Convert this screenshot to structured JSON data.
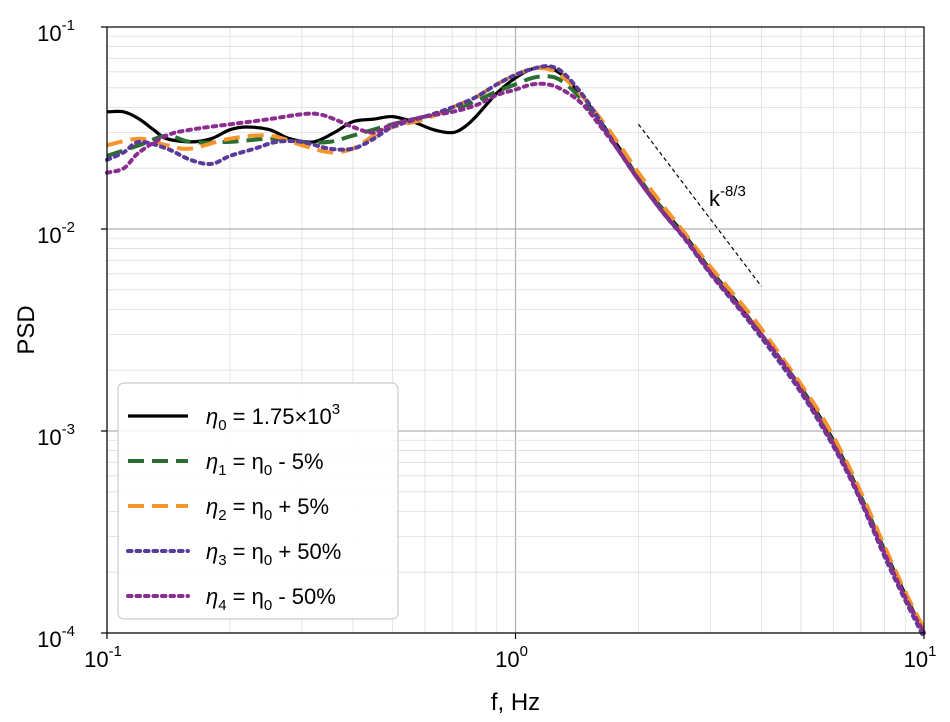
{
  "chart_data": {
    "type": "line",
    "title": "",
    "xlabel": "f, Hz",
    "ylabel": "PSD",
    "xscale": "log",
    "yscale": "log",
    "xlim": [
      0.1,
      10
    ],
    "ylim": [
      0.0001,
      0.1
    ],
    "grid": true,
    "legend_position": "lower-left",
    "x_ticks": [
      {
        "base": "10",
        "exp": "-1"
      },
      {
        "base": "10",
        "exp": "0"
      },
      {
        "base": "10",
        "exp": "1"
      }
    ],
    "y_ticks": [
      {
        "base": "10",
        "exp": "-4"
      },
      {
        "base": "10",
        "exp": "-3"
      },
      {
        "base": "10",
        "exp": "-2"
      },
      {
        "base": "10",
        "exp": "-1"
      }
    ],
    "annotation": {
      "label_base": "k",
      "label_exp": "-8/3",
      "line": {
        "x": [
          2.0,
          4.0
        ],
        "y": [
          0.033,
          0.0052
        ]
      }
    },
    "series": [
      {
        "name": "η0 = 1.75×10^3",
        "legend": {
          "sym": "η",
          "sub": "0",
          "text": " = 1.75×10",
          "sup": "3"
        },
        "color": "#000000",
        "style": "solid",
        "x": [
          0.1,
          0.11,
          0.12,
          0.13,
          0.14,
          0.16,
          0.18,
          0.2,
          0.22,
          0.25,
          0.28,
          0.32,
          0.36,
          0.4,
          0.45,
          0.5,
          0.56,
          0.63,
          0.7,
          0.75,
          0.8,
          0.9,
          1.0,
          1.1,
          1.2,
          1.3,
          1.45,
          1.6,
          1.8,
          2.0,
          2.3,
          2.6,
          3.0,
          3.5,
          4.0,
          4.5,
          5.0,
          5.6,
          6.3,
          7.0,
          8.0,
          9.0,
          10.0
        ],
        "y": [
          0.038,
          0.038,
          0.035,
          0.031,
          0.028,
          0.027,
          0.028,
          0.031,
          0.032,
          0.031,
          0.028,
          0.027,
          0.03,
          0.034,
          0.035,
          0.036,
          0.034,
          0.031,
          0.03,
          0.032,
          0.036,
          0.047,
          0.056,
          0.062,
          0.063,
          0.058,
          0.046,
          0.035,
          0.025,
          0.018,
          0.0125,
          0.0093,
          0.0063,
          0.0043,
          0.003,
          0.0022,
          0.00165,
          0.00115,
          0.00075,
          0.00048,
          0.00026,
          0.000155,
          0.0001
        ]
      },
      {
        "name": "η1 = η0 - 5%",
        "legend": {
          "sym": "η",
          "sub": "1",
          "text": " = η",
          "sub2": "0",
          "text2": " - 5%"
        },
        "color": "#2a6e32",
        "style": "dash",
        "x": [
          0.1,
          0.12,
          0.14,
          0.16,
          0.2,
          0.25,
          0.3,
          0.35,
          0.4,
          0.5,
          0.6,
          0.7,
          0.8,
          0.9,
          1.0,
          1.1,
          1.2,
          1.3,
          1.45,
          1.6,
          1.8,
          2.0,
          2.3,
          2.6,
          3.0,
          3.5,
          4.0,
          4.5,
          5.0,
          5.6,
          6.3,
          7.0,
          8.0,
          9.0,
          10.0
        ],
        "y": [
          0.023,
          0.026,
          0.029,
          0.027,
          0.027,
          0.028,
          0.027,
          0.027,
          0.029,
          0.033,
          0.036,
          0.039,
          0.043,
          0.048,
          0.052,
          0.056,
          0.057,
          0.054,
          0.044,
          0.034,
          0.024,
          0.018,
          0.0123,
          0.0091,
          0.0062,
          0.0042,
          0.003,
          0.0022,
          0.00162,
          0.00112,
          0.00073,
          0.00047,
          0.000255,
          0.00015,
          0.0001
        ]
      },
      {
        "name": "η2 = η0 + 5%",
        "legend": {
          "sym": "η",
          "sub": "2",
          "text": " = η",
          "sub2": "0",
          "text2": " + 5%"
        },
        "color": "#f5952b",
        "style": "dash",
        "x": [
          0.1,
          0.12,
          0.14,
          0.16,
          0.2,
          0.25,
          0.3,
          0.35,
          0.4,
          0.45,
          0.5,
          0.6,
          0.7,
          0.8,
          0.9,
          1.0,
          1.1,
          1.2,
          1.3,
          1.45,
          1.6,
          1.8,
          2.0,
          2.3,
          2.6,
          3.0,
          3.5,
          4.0,
          4.5,
          5.0,
          5.6,
          6.3,
          7.0,
          8.0,
          9.0,
          10.0
        ],
        "y": [
          0.026,
          0.028,
          0.026,
          0.025,
          0.028,
          0.029,
          0.026,
          0.024,
          0.025,
          0.029,
          0.032,
          0.035,
          0.04,
          0.045,
          0.052,
          0.058,
          0.062,
          0.062,
          0.057,
          0.046,
          0.036,
          0.026,
          0.019,
          0.013,
          0.0095,
          0.0065,
          0.0045,
          0.0032,
          0.0023,
          0.0017,
          0.0012,
          0.00078,
          0.0005,
          0.00027,
          0.00016,
          0.000105
        ]
      },
      {
        "name": "η3 = η0 + 50%",
        "legend": {
          "sym": "η",
          "sub": "3",
          "text": " = η",
          "sub2": "0",
          "text2": " + 50%"
        },
        "color": "#5a3a9a",
        "style": "dot",
        "x": [
          0.1,
          0.11,
          0.12,
          0.14,
          0.16,
          0.18,
          0.2,
          0.23,
          0.26,
          0.3,
          0.35,
          0.4,
          0.45,
          0.5,
          0.6,
          0.7,
          0.8,
          0.9,
          1.0,
          1.1,
          1.2,
          1.3,
          1.45,
          1.6,
          1.8,
          2.0,
          2.3,
          2.6,
          3.0,
          3.5,
          4.0,
          4.5,
          5.0,
          5.6,
          6.3,
          7.0,
          8.0,
          9.0,
          10.0
        ],
        "y": [
          0.022,
          0.024,
          0.027,
          0.025,
          0.022,
          0.021,
          0.023,
          0.025,
          0.027,
          0.027,
          0.025,
          0.025,
          0.028,
          0.032,
          0.036,
          0.04,
          0.045,
          0.052,
          0.058,
          0.062,
          0.064,
          0.06,
          0.047,
          0.035,
          0.024,
          0.0175,
          0.012,
          0.0089,
          0.006,
          0.0041,
          0.0029,
          0.0021,
          0.00155,
          0.00107,
          0.0007,
          0.00045,
          0.00024,
          0.000145,
          9.5e-05
        ]
      },
      {
        "name": "η4 = η0 - 50%",
        "legend": {
          "sym": "η",
          "sub": "4",
          "text": " = η",
          "sub2": "0",
          "text2": " - 50%"
        },
        "color": "#8a2d8f",
        "style": "dot",
        "x": [
          0.1,
          0.11,
          0.12,
          0.14,
          0.16,
          0.2,
          0.25,
          0.3,
          0.33,
          0.36,
          0.4,
          0.45,
          0.5,
          0.6,
          0.7,
          0.8,
          0.9,
          1.0,
          1.1,
          1.2,
          1.3,
          1.45,
          1.6,
          1.8,
          2.0,
          2.3,
          2.6,
          3.0,
          3.5,
          4.0,
          4.5,
          5.0,
          5.6,
          6.3,
          7.0,
          8.0,
          9.0,
          10.0
        ],
        "y": [
          0.019,
          0.02,
          0.024,
          0.029,
          0.031,
          0.033,
          0.035,
          0.037,
          0.037,
          0.035,
          0.032,
          0.03,
          0.033,
          0.036,
          0.038,
          0.041,
          0.046,
          0.049,
          0.052,
          0.052,
          0.049,
          0.042,
          0.033,
          0.024,
          0.0175,
          0.012,
          0.009,
          0.0061,
          0.0042,
          0.003,
          0.0022,
          0.0016,
          0.0011,
          0.00072,
          0.00046,
          0.00025,
          0.00015,
          0.0001
        ]
      }
    ]
  }
}
